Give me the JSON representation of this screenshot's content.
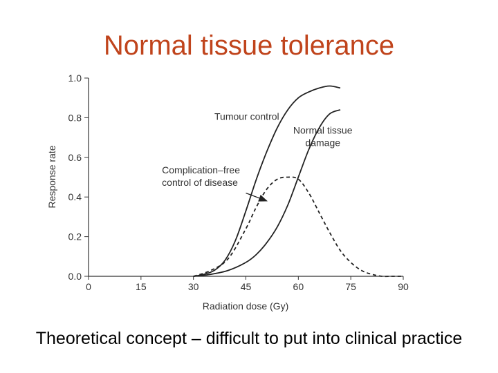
{
  "slide": {
    "title": "Normal tissue tolerance",
    "caption": "Theoretical concept – difficult to put into clinical practice"
  },
  "chart_data": {
    "type": "line",
    "xlabel": "Radiation dose (Gy)",
    "ylabel": "Response rate",
    "xlim": [
      0,
      90
    ],
    "ylim": [
      0,
      1.0
    ],
    "x_ticks": [
      "0",
      "15",
      "30",
      "45",
      "60",
      "75",
      "90"
    ],
    "y_ticks": [
      "0.0",
      "0.2",
      "0.4",
      "0.6",
      "0.8",
      "1.0"
    ],
    "grid": false,
    "line_color": "#222222",
    "series": [
      {
        "name": "Tumour control",
        "style": "solid",
        "x": [
          30,
          33,
          36,
          39,
          42,
          45,
          48,
          51,
          54,
          57,
          60,
          63,
          66,
          69,
          72
        ],
        "y": [
          0.0,
          0.01,
          0.03,
          0.08,
          0.18,
          0.33,
          0.49,
          0.63,
          0.75,
          0.84,
          0.9,
          0.93,
          0.95,
          0.96,
          0.95
        ]
      },
      {
        "name": "Normal tissue damage",
        "style": "solid",
        "x": [
          30,
          35,
          40,
          45,
          48,
          51,
          54,
          57,
          60,
          63,
          66,
          69,
          72
        ],
        "y": [
          0.0,
          0.01,
          0.03,
          0.07,
          0.11,
          0.17,
          0.25,
          0.36,
          0.5,
          0.64,
          0.75,
          0.82,
          0.84
        ]
      },
      {
        "name": "Complication–free control of disease",
        "style": "dashed",
        "x": [
          30,
          35,
          40,
          45,
          48,
          51,
          54,
          57,
          60,
          63,
          66,
          69,
          72,
          75,
          78,
          81,
          84,
          87,
          90
        ],
        "y": [
          0.0,
          0.03,
          0.09,
          0.24,
          0.35,
          0.44,
          0.49,
          0.5,
          0.49,
          0.42,
          0.32,
          0.22,
          0.13,
          0.07,
          0.03,
          0.01,
          0.0,
          0.0,
          0.0
        ]
      }
    ],
    "annotations": [
      {
        "lines": [
          "Tumour control"
        ],
        "x": 36,
        "y": 0.79,
        "anchor": "start"
      },
      {
        "lines": [
          "Normal  tissue",
          "damage"
        ],
        "x": 67,
        "y": 0.72,
        "anchor": "middle"
      },
      {
        "lines": [
          "Complication–free",
          "control of disease"
        ],
        "x": 21,
        "y": 0.52,
        "anchor": "start"
      }
    ],
    "arrow": {
      "from": [
        45,
        0.42
      ],
      "to": [
        51,
        0.38
      ]
    }
  }
}
